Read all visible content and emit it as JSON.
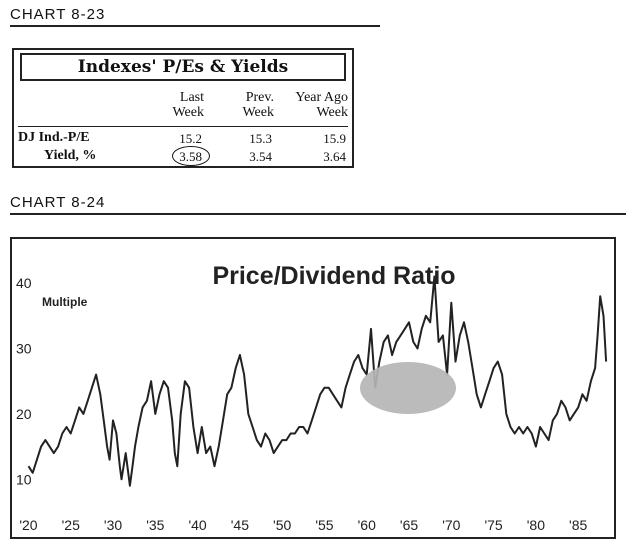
{
  "chart_8_23": {
    "caption": "CHART 8-23",
    "title": "Indexes' P/Es & Yields",
    "columns": [
      {
        "line1": "Last",
        "line2": "Week"
      },
      {
        "line1": "Prev.",
        "line2": "Week"
      },
      {
        "line1": "Year Ago",
        "line2": "Week"
      }
    ],
    "rows": [
      {
        "label": "DJ Ind.-P/E",
        "values": [
          "15.2",
          "15.3",
          "15.9"
        ]
      },
      {
        "label": "Yield, %",
        "values": [
          "3.58",
          "3.54",
          "3.64"
        ]
      }
    ]
  },
  "chart_data": {
    "caption": "CHART 8-24",
    "type": "line",
    "title": "Price/Dividend Ratio",
    "ylabel": "Multiple",
    "xlabel": "",
    "xlim": [
      1919,
      1989
    ],
    "ylim": [
      5,
      42
    ],
    "yticks": [
      10,
      20,
      30,
      40
    ],
    "ytick_labels": [
      "10",
      "20",
      "30",
      "40"
    ],
    "xticks": [
      1920,
      1925,
      1930,
      1935,
      1940,
      1945,
      1950,
      1955,
      1960,
      1965,
      1970,
      1975,
      1980,
      1985
    ],
    "xtick_labels": [
      "'20",
      "'25",
      "'30",
      "'35",
      "'40",
      "'45",
      "'50",
      "'55",
      "'60",
      "'65",
      "'70",
      "'75",
      "'80",
      "'85"
    ],
    "grid": false,
    "series": [
      {
        "x": [
          1920,
          1920.5,
          1921,
          1921.5,
          1922,
          1922.5,
          1923,
          1923.5,
          1924,
          1924.5,
          1925,
          1925.5,
          1926,
          1926.5,
          1927,
          1927.5,
          1928,
          1928.5,
          1929,
          1929.3,
          1929.6,
          1930,
          1930.4,
          1930.8,
          1931,
          1931.5,
          1932,
          1932.3,
          1932.6,
          1933,
          1933.5,
          1934,
          1934.5,
          1935,
          1935.5,
          1936,
          1936.5,
          1937,
          1937.3,
          1937.6,
          1938,
          1938.5,
          1939,
          1939.5,
          1940,
          1940.5,
          1941,
          1941.5,
          1942,
          1942.5,
          1943,
          1943.5,
          1944,
          1944.5,
          1945,
          1945.5,
          1946,
          1946.5,
          1947,
          1947.5,
          1948,
          1948.5,
          1949,
          1949.5,
          1950,
          1950.5,
          1951,
          1951.5,
          1952,
          1952.5,
          1953,
          1953.5,
          1954,
          1954.5,
          1955,
          1955.5,
          1956,
          1956.5,
          1957,
          1957.5,
          1958,
          1958.5,
          1959,
          1959.5,
          1960,
          1960.5,
          1961,
          1961.5,
          1962,
          1962.5,
          1963,
          1963.5,
          1964,
          1964.5,
          1965,
          1965.5,
          1966,
          1966.5,
          1967,
          1967.5,
          1968,
          1968.5,
          1969,
          1969.5,
          1970,
          1970.5,
          1971,
          1971.5,
          1972,
          1972.5,
          1973,
          1973.5,
          1974,
          1974.5,
          1975,
          1975.5,
          1976,
          1976.5,
          1977,
          1977.5,
          1978,
          1978.5,
          1979,
          1979.5,
          1980,
          1980.5,
          1981,
          1981.5,
          1982,
          1982.5,
          1983,
          1983.5,
          1984,
          1984.5,
          1985,
          1985.5,
          1986,
          1986.5,
          1987,
          1987.3,
          1987.6,
          1988,
          1988.3
        ],
        "y": [
          12,
          11,
          13,
          15,
          16,
          15,
          14,
          15,
          17,
          18,
          17,
          19,
          21,
          20,
          22,
          24,
          26,
          23,
          18,
          15,
          13,
          19,
          17,
          12,
          10,
          14,
          9,
          12,
          15,
          18,
          21,
          22,
          25,
          20,
          23,
          25,
          24,
          19,
          14,
          12,
          20,
          25,
          24,
          18,
          14,
          18,
          14,
          15,
          12,
          15,
          19,
          23,
          24,
          27,
          29,
          26,
          20,
          18,
          16,
          15,
          17,
          16,
          14,
          15,
          16,
          16,
          17,
          17,
          18,
          18,
          17,
          19,
          21,
          23,
          24,
          24,
          23,
          22,
          21,
          24,
          26,
          28,
          29,
          27,
          26,
          33,
          24,
          28,
          31,
          32,
          29,
          31,
          32,
          33,
          34,
          31,
          30,
          33,
          35,
          34,
          41,
          31,
          32,
          26,
          37,
          28,
          32,
          34,
          31,
          27,
          23,
          21,
          23,
          25,
          27,
          28,
          26,
          20,
          18,
          17,
          18,
          17,
          18,
          17,
          15,
          18,
          17,
          16,
          19,
          20,
          22,
          21,
          19,
          20,
          21,
          23,
          22,
          25,
          27,
          32,
          38,
          35,
          28
        ]
      }
    ]
  }
}
